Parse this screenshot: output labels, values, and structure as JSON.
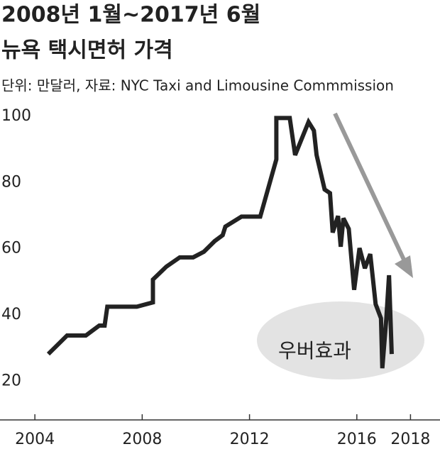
{
  "chart_data": {
    "type": "line",
    "title": "2008년 1월~2017년 6월",
    "subtitle": "뉴욕 택시면허 가격",
    "note": "단위: 만달러, 자료: NYC Taxi and Limousine Commmission",
    "annotation": "우버효과",
    "x": [
      2004.5,
      2005.2,
      2005.9,
      2006.4,
      2006.6,
      2006.7,
      2007.8,
      2008.4,
      2008.4,
      2008.9,
      2009.4,
      2009.9,
      2010.3,
      2010.7,
      2011.0,
      2011.1,
      2011.7,
      2012.4,
      2013.0,
      2013.0,
      2013.5,
      2013.7,
      2014.2,
      2014.4,
      2014.5,
      2014.8,
      2015.0,
      2015.1,
      2015.3,
      2015.4,
      2015.5,
      2015.7,
      2015.9,
      2016.1,
      2016.3,
      2016.5,
      2016.6,
      2016.7,
      2016.9,
      2016.95,
      2017.1,
      2017.2,
      2017.3
    ],
    "series": [
      {
        "name": "뉴욕 택시면허 가격",
        "color": "#222222",
        "values": [
          28.2,
          33.8,
          33.8,
          36.8,
          36.8,
          42.5,
          42.5,
          43.8,
          50.7,
          54.6,
          57.4,
          57.4,
          59.1,
          62.3,
          64.1,
          66.7,
          69.7,
          69.7,
          87,
          99.5,
          99.5,
          88.3,
          98.3,
          95.7,
          88.3,
          77.9,
          76.8,
          64.9,
          69.9,
          60.6,
          69.2,
          66,
          47.6,
          60.2,
          54.1,
          58.4,
          50.9,
          43.3,
          39,
          23.9,
          39,
          52,
          28.2
        ]
      }
    ],
    "xlim": [
      2002.7,
      2019.1
    ],
    "xticks": [
      2004,
      2008,
      2012,
      2016,
      2018
    ],
    "ylim": [
      8.3,
      103
    ],
    "yticks": [
      20,
      40,
      60,
      80,
      100
    ]
  }
}
